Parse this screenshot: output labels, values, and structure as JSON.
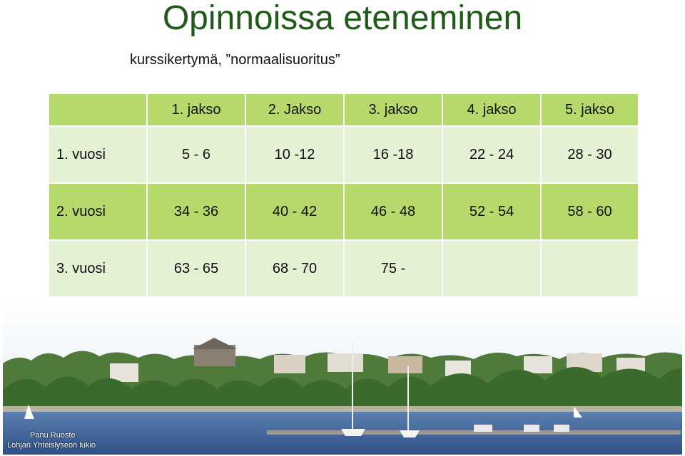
{
  "title": "Opinnoissa eteneminen",
  "subtitle": "kurssikertymä, ”normaalisuoritus”",
  "table": {
    "corner": "",
    "headers": [
      "1. jakso",
      "2. Jakso",
      "3. jakso",
      "4. jakso",
      "5. jakso"
    ],
    "rows": [
      {
        "label": "1. vuosi",
        "cells": [
          "5 - 6",
          "10 -12",
          "16 -18",
          "22 - 24",
          "28 - 30"
        ]
      },
      {
        "label": "2. vuosi",
        "cells": [
          "34 - 36",
          "40 - 42",
          "46 - 48",
          "52 - 54",
          "58 - 60"
        ]
      },
      {
        "label": "3. vuosi",
        "cells": [
          "63 - 65",
          "68 - 70",
          "75 -",
          "",
          ""
        ]
      }
    ]
  },
  "photo": {
    "caption_author": "Panu Ruoste",
    "caption_school": "Lohjan Yhteislyseon lukio"
  },
  "colors": {
    "title": "#1f5a18",
    "header_row": "#b5d96a",
    "light_row": "#e5f1d5",
    "dark_row": "#b5d96a"
  }
}
